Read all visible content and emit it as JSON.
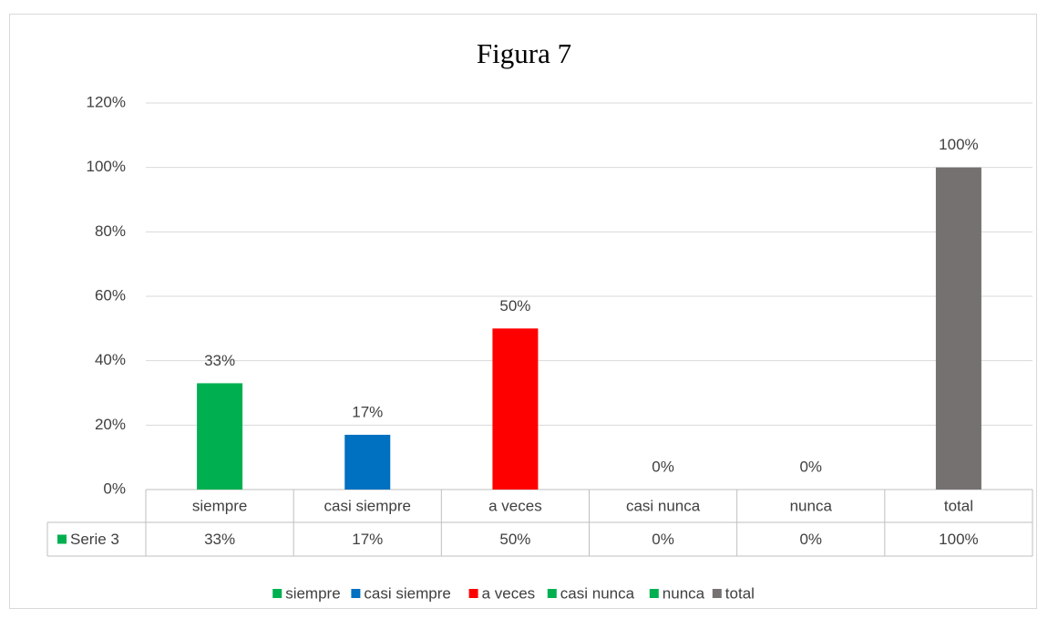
{
  "chart_data": {
    "type": "bar",
    "title": "Figura 7",
    "categories": [
      "siempre",
      "casi siempre",
      "a veces",
      "casi nunca",
      "nunca",
      "total"
    ],
    "series": [
      {
        "name": "Serie 3",
        "values": [
          33,
          17,
          50,
          0,
          0,
          100
        ],
        "value_labels": [
          "33%",
          "17%",
          "50%",
          "0%",
          "0%",
          "100%"
        ],
        "colors": [
          "#00b050",
          "#0070c0",
          "#ff0000",
          "#00b050",
          "#00b050",
          "#767171"
        ]
      }
    ],
    "ylim": [
      0,
      120
    ],
    "yticks": [
      {
        "value": 0,
        "label": "0%"
      },
      {
        "value": 20,
        "label": "20%"
      },
      {
        "value": 40,
        "label": "40%"
      },
      {
        "value": 60,
        "label": "60%"
      },
      {
        "value": 80,
        "label": "80%"
      },
      {
        "value": 100,
        "label": "100%"
      },
      {
        "value": 120,
        "label": "120%"
      }
    ],
    "grid": true,
    "legend": "bottom",
    "data_table": true
  }
}
